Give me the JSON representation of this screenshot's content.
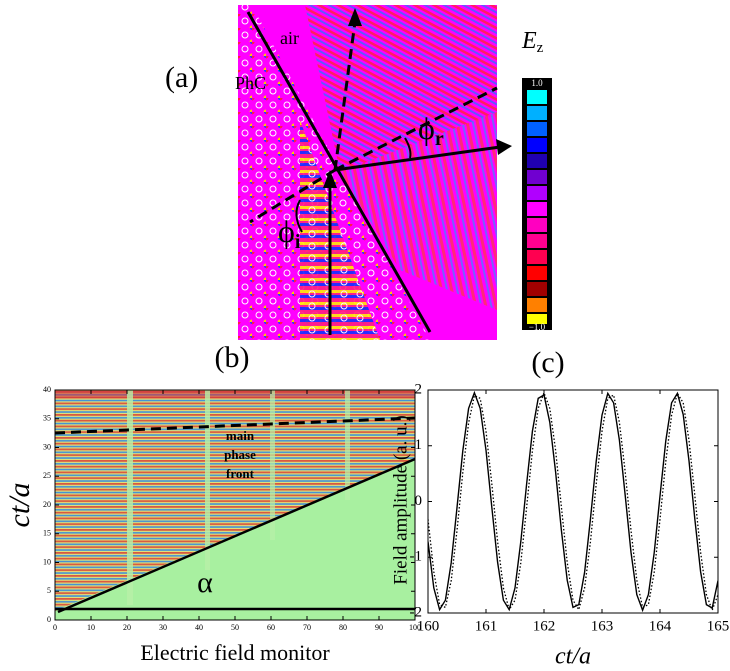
{
  "chart_data": [
    {
      "type": "field_map",
      "panel_label": "(a)",
      "labels": [
        "air",
        "PhC"
      ],
      "angles": [
        {
          "symbol": "ϕ",
          "sub": "r"
        },
        {
          "symbol": "ϕ",
          "sub": "i"
        }
      ],
      "colorbar": {
        "symbol": "E",
        "sub": "z",
        "clim": [
          -1,
          1
        ],
        "ticks": [
          {
            "value": 1,
            "label": "1.0"
          },
          {
            "value": -1,
            "label": "−1.0"
          }
        ]
      }
    },
    {
      "type": "field_map",
      "panel_label": "(b)",
      "xlabel": "Electric field monitor",
      "ylabel": "ct/a",
      "xlim": [
        0,
        100
      ],
      "ylim": [
        0,
        40
      ],
      "xticks": [
        0,
        10,
        20,
        30,
        40,
        50,
        60,
        70,
        80,
        90,
        100
      ],
      "yticks": [
        0,
        5,
        10,
        15,
        20,
        25,
        30,
        35,
        40
      ],
      "annotation_lines": [
        "main",
        "phase",
        "front"
      ],
      "angle_label": "α"
    },
    {
      "type": "line",
      "panel_label": "(c)",
      "xlabel": "ct/a",
      "ylabel": "Field amplitude (a. u.)",
      "xlim": [
        160,
        165
      ],
      "ylim": [
        -2,
        2
      ],
      "xticks": [
        160,
        161,
        162,
        163,
        164,
        165
      ],
      "yticks": [
        -2,
        -1,
        0,
        1,
        2
      ],
      "x": [
        160,
        160.1,
        160.2,
        160.3,
        160.4,
        160.5,
        160.6,
        160.7,
        160.8,
        160.9,
        161,
        161.1,
        161.2,
        161.3,
        161.4,
        161.5,
        161.6,
        161.7,
        161.8,
        161.9,
        162,
        162.1,
        162.2,
        162.3,
        162.4,
        162.5,
        162.6,
        162.7,
        162.8,
        162.9,
        163,
        163.1,
        163.2,
        163.3,
        163.4,
        163.5,
        163.6,
        163.7,
        163.8,
        163.9,
        164,
        164.1,
        164.2,
        164.3,
        164.4,
        164.5,
        164.6,
        164.7,
        164.8,
        164.9,
        165
      ],
      "series": [
        {
          "color": "#000000",
          "style": "solid",
          "values": [
            -0.72,
            -1.55,
            -1.94,
            -1.77,
            -1.1,
            -0.11,
            0.91,
            1.67,
            1.95,
            1.67,
            0.92,
            -0.1,
            -1.09,
            -1.77,
            -1.94,
            -1.55,
            -0.72,
            0.31,
            1.26,
            1.85,
            1.91,
            1.42,
            0.53,
            -0.52,
            -1.41,
            -1.9,
            -1.85,
            -1.27,
            -0.32,
            0.72,
            1.55,
            1.94,
            1.77,
            1.1,
            0.11,
            -0.91,
            -1.67,
            -1.95,
            -1.67,
            -0.92,
            0.1,
            1.09,
            1.77,
            1.94,
            1.56,
            0.73,
            -0.31,
            -1.26,
            -1.85,
            -1.91,
            -1.42
          ]
        },
        {
          "color": "#000000",
          "style": "dotted",
          "values": [
            -0.32,
            -1.26,
            -1.85,
            -1.9,
            -1.42,
            -0.52,
            0.52,
            1.41,
            1.9,
            1.85,
            1.26,
            0.32,
            -0.72,
            -1.55,
            -1.94,
            -1.77,
            -1.1,
            -0.11,
            0.91,
            1.67,
            1.95,
            1.67,
            0.92,
            -0.1,
            -1.09,
            -1.77,
            -1.94,
            -1.55,
            -0.73,
            0.31,
            1.26,
            1.85,
            1.91,
            1.42,
            0.53,
            -0.52,
            -1.41,
            -1.9,
            -1.85,
            -1.27,
            -0.32,
            0.72,
            1.55,
            1.94,
            1.77,
            1.1,
            0.11,
            -0.91,
            -1.67,
            -1.95,
            -1.67
          ]
        }
      ]
    }
  ]
}
